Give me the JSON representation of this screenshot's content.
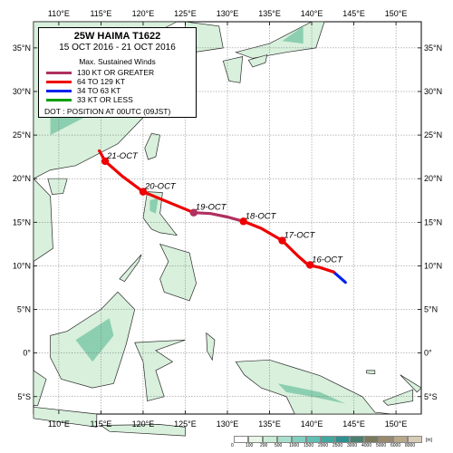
{
  "legend": {
    "title": "25W  HAIMA  T1622",
    "dates": "15 OCT 2016 - 21 OCT 2016",
    "header": "Max. Sustained Winds",
    "items": [
      {
        "label": "130 KT OR GREATER",
        "color": "#b03060"
      },
      {
        "label": "64 TO 129 KT",
        "color": "#ee0000"
      },
      {
        "label": "34 TO 63 KT",
        "color": "#0022ee"
      },
      {
        "label": "33 KT OR LESS",
        "color": "#00a000"
      }
    ],
    "dot_note": "DOT : POSITION AT 00UTC (09JST)"
  },
  "axes": {
    "lon_ticks": [
      "110°E",
      "115°E",
      "120°E",
      "125°E",
      "130°E",
      "135°E",
      "140°E",
      "145°E",
      "150°E"
    ],
    "lat_ticks": [
      "35°N",
      "30°N",
      "25°N",
      "20°N",
      "15°N",
      "10°N",
      "5°N",
      "0°",
      "5°S"
    ],
    "lon_range": [
      107,
      153
    ],
    "lat_range": [
      -7,
      38
    ]
  },
  "track": {
    "segments": [
      {
        "category": "34 TO 63 KT",
        "points": [
          [
            144.0,
            8.1
          ],
          [
            142.6,
            9.3
          ]
        ]
      },
      {
        "category": "64 TO 129 KT",
        "points": [
          [
            142.6,
            9.3
          ],
          [
            141.0,
            9.8
          ],
          [
            139.6,
            10.1
          ],
          [
            138.3,
            11.2
          ],
          [
            136.5,
            12.9
          ],
          [
            134.0,
            14.3
          ],
          [
            131.9,
            15.1
          ]
        ]
      },
      {
        "category": "130 KT OR GREATER",
        "points": [
          [
            131.9,
            15.1
          ],
          [
            130.0,
            15.6
          ],
          [
            128.0,
            16.0
          ],
          [
            126.0,
            16.1
          ]
        ]
      },
      {
        "category": "64 TO 129 KT",
        "points": [
          [
            126.0,
            16.1
          ],
          [
            123.0,
            17.3
          ],
          [
            120.0,
            18.5
          ],
          [
            117.5,
            20.3
          ],
          [
            115.5,
            22.0
          ],
          [
            114.8,
            23.2
          ]
        ]
      }
    ],
    "daily_positions": [
      {
        "label": "16-OCT",
        "lon": 139.8,
        "lat": 10.1
      },
      {
        "label": "17-OCT",
        "lon": 136.5,
        "lat": 12.9
      },
      {
        "label": "18-OCT",
        "lon": 131.9,
        "lat": 15.1
      },
      {
        "label": "19-OCT",
        "lon": 126.0,
        "lat": 16.1
      },
      {
        "label": "20-OCT",
        "lon": 120.0,
        "lat": 18.5
      },
      {
        "label": "21-OCT",
        "lon": 115.5,
        "lat": 22.0
      }
    ]
  },
  "elevation_scale": {
    "labels": [
      "0",
      "100",
      "200",
      "500",
      "1000",
      "1500",
      "2000",
      "2500",
      "3000",
      "4000",
      "5000",
      "6000",
      "8000"
    ],
    "unit": "[m]",
    "colors": [
      "#ffffff",
      "#e8f6e8",
      "#c8ecd4",
      "#a8e0cc",
      "#80d0c0",
      "#60c0b4",
      "#3fa8a0",
      "#2f9090",
      "#4a8070",
      "#7a7a5a",
      "#9a8a6a",
      "#b8a888",
      "#d8ccb8"
    ]
  }
}
